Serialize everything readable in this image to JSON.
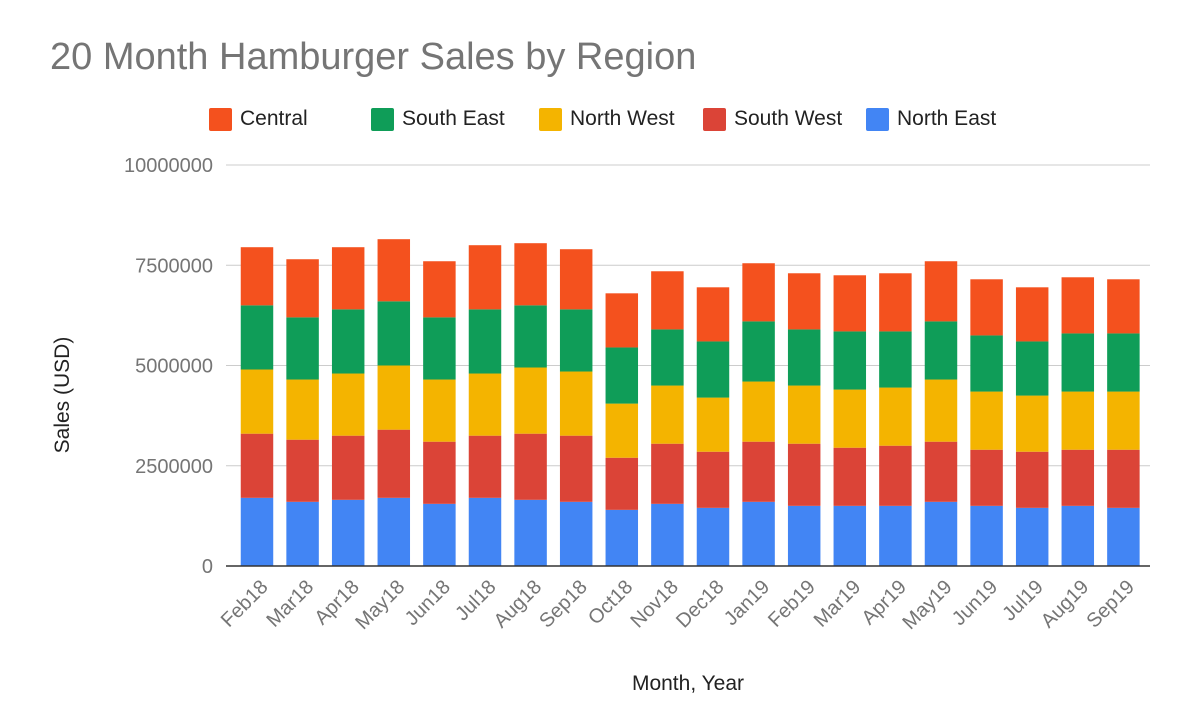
{
  "chart_data": {
    "type": "bar",
    "stacked": true,
    "title": "20 Month Hamburger Sales by Region",
    "xlabel": "Month, Year",
    "ylabel": "Sales (USD)",
    "ylim": [
      0,
      10000000
    ],
    "yticks": [
      "0",
      "2500000",
      "5000000",
      "7500000",
      "10000000"
    ],
    "grid": true,
    "legend_position": "top",
    "categories": [
      "Feb18",
      "Mar18",
      "Apr18",
      "May18",
      "Jun18",
      "Jul18",
      "Aug18",
      "Sep18",
      "Oct18",
      "Nov18",
      "Dec18",
      "Jan19",
      "Feb19",
      "Mar19",
      "Apr19",
      "May19",
      "Jun19",
      "Jul19",
      "Aug19",
      "Sep19"
    ],
    "series": [
      {
        "name": "North East",
        "color": "#4285f4",
        "values": [
          1700000,
          1600000,
          1650000,
          1700000,
          1550000,
          1700000,
          1650000,
          1600000,
          1400000,
          1550000,
          1450000,
          1600000,
          1500000,
          1500000,
          1500000,
          1600000,
          1500000,
          1450000,
          1500000,
          1450000
        ]
      },
      {
        "name": "South West",
        "color": "#db4437",
        "values": [
          1600000,
          1550000,
          1600000,
          1700000,
          1550000,
          1550000,
          1650000,
          1650000,
          1300000,
          1500000,
          1400000,
          1500000,
          1550000,
          1450000,
          1500000,
          1500000,
          1400000,
          1400000,
          1400000,
          1450000
        ]
      },
      {
        "name": "North West",
        "color": "#f4b400",
        "values": [
          1600000,
          1500000,
          1550000,
          1600000,
          1550000,
          1550000,
          1650000,
          1600000,
          1350000,
          1450000,
          1350000,
          1500000,
          1450000,
          1450000,
          1450000,
          1550000,
          1450000,
          1400000,
          1450000,
          1450000
        ]
      },
      {
        "name": "South East",
        "color": "#0f9d58",
        "values": [
          1600000,
          1550000,
          1600000,
          1600000,
          1550000,
          1600000,
          1550000,
          1550000,
          1400000,
          1400000,
          1400000,
          1500000,
          1400000,
          1450000,
          1400000,
          1450000,
          1400000,
          1350000,
          1450000,
          1450000
        ]
      },
      {
        "name": "Central",
        "color": "#f4511e",
        "values": [
          1450000,
          1450000,
          1550000,
          1550000,
          1400000,
          1600000,
          1550000,
          1500000,
          1350000,
          1450000,
          1350000,
          1450000,
          1400000,
          1400000,
          1450000,
          1500000,
          1400000,
          1350000,
          1400000,
          1350000
        ]
      }
    ],
    "legend_order": [
      "Central",
      "South East",
      "North West",
      "South West",
      "North East"
    ]
  }
}
